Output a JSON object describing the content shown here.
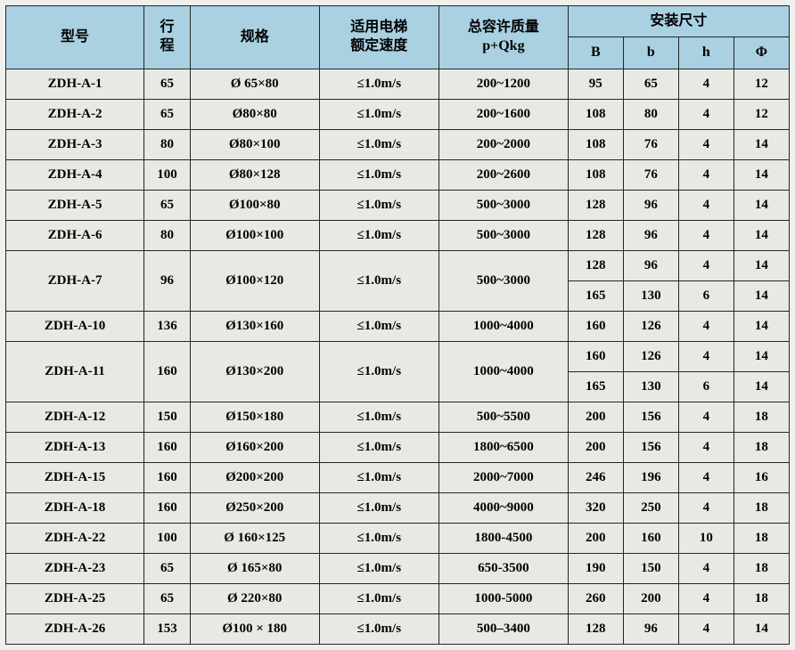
{
  "header": {
    "model": "型号",
    "stroke": "行程",
    "spec": "规格",
    "speed_line1": "适用电梯",
    "speed_line2": "额定速度",
    "mass_line1": "总容许质量",
    "mass_line2": "p+Qkg",
    "install": "安装尺寸",
    "B": "B",
    "b": "b",
    "h": "h",
    "phi": "Φ"
  },
  "colors": {
    "header_bg": "#a9d1e2",
    "body_bg": "#e8e8e4",
    "border": "#252525"
  },
  "rows": [
    {
      "model": "ZDH-A-1",
      "stroke": "65",
      "spec": "Ø 65×80",
      "speed": "≤1.0m/s",
      "mass": "200~1200",
      "dims": [
        {
          "B": "95",
          "b": "65",
          "h": "4",
          "phi": "12"
        }
      ]
    },
    {
      "model": "ZDH-A-2",
      "stroke": "65",
      "spec": "Ø80×80",
      "speed": "≤1.0m/s",
      "mass": "200~1600",
      "dims": [
        {
          "B": "108",
          "b": "80",
          "h": "4",
          "phi": "12"
        }
      ]
    },
    {
      "model": "ZDH-A-3",
      "stroke": "80",
      "spec": "Ø80×100",
      "speed": "≤1.0m/s",
      "mass": "200~2000",
      "dims": [
        {
          "B": "108",
          "b": "76",
          "h": "4",
          "phi": "14"
        }
      ]
    },
    {
      "model": "ZDH-A-4",
      "stroke": "100",
      "spec": "Ø80×128",
      "speed": "≤1.0m/s",
      "mass": "200~2600",
      "dims": [
        {
          "B": "108",
          "b": "76",
          "h": "4",
          "phi": "14"
        }
      ]
    },
    {
      "model": "ZDH-A-5",
      "stroke": "65",
      "spec": "Ø100×80",
      "speed": "≤1.0m/s",
      "mass": "500~3000",
      "dims": [
        {
          "B": "128",
          "b": "96",
          "h": "4",
          "phi": "14"
        }
      ]
    },
    {
      "model": "ZDH-A-6",
      "stroke": "80",
      "spec": "Ø100×100",
      "speed": "≤1.0m/s",
      "mass": "500~3000",
      "dims": [
        {
          "B": "128",
          "b": "96",
          "h": "4",
          "phi": "14"
        }
      ]
    },
    {
      "model": "ZDH-A-7",
      "stroke": "96",
      "spec": "Ø100×120",
      "speed": "≤1.0m/s",
      "mass": "500~3000",
      "dims": [
        {
          "B": "128",
          "b": "96",
          "h": "4",
          "phi": "14"
        },
        {
          "B": "165",
          "b": "130",
          "h": "6",
          "phi": "14"
        }
      ]
    },
    {
      "model": "ZDH-A-10",
      "stroke": "136",
      "spec": "Ø130×160",
      "speed": "≤1.0m/s",
      "mass": "1000~4000",
      "dims": [
        {
          "B": "160",
          "b": "126",
          "h": "4",
          "phi": "14"
        }
      ]
    },
    {
      "model": "ZDH-A-11",
      "stroke": "160",
      "spec": "Ø130×200",
      "speed": "≤1.0m/s",
      "mass": "1000~4000",
      "dims": [
        {
          "B": "160",
          "b": "126",
          "h": "4",
          "phi": "14"
        },
        {
          "B": "165",
          "b": "130",
          "h": "6",
          "phi": "14"
        }
      ]
    },
    {
      "model": "ZDH-A-12",
      "stroke": "150",
      "spec": "Ø150×180",
      "speed": "≤1.0m/s",
      "mass": "500~5500",
      "dims": [
        {
          "B": "200",
          "b": "156",
          "h": "4",
          "phi": "18"
        }
      ]
    },
    {
      "model": "ZDH-A-13",
      "stroke": "160",
      "spec": "Ø160×200",
      "speed": "≤1.0m/s",
      "mass": "1800~6500",
      "dims": [
        {
          "B": "200",
          "b": "156",
          "h": "4",
          "phi": "18"
        }
      ]
    },
    {
      "model": "ZDH-A-15",
      "stroke": "160",
      "spec": "Ø200×200",
      "speed": "≤1.0m/s",
      "mass": "2000~7000",
      "dims": [
        {
          "B": "246",
          "b": "196",
          "h": "4",
          "phi": "16"
        }
      ]
    },
    {
      "model": "ZDH-A-18",
      "stroke": "160",
      "spec": "Ø250×200",
      "speed": "≤1.0m/s",
      "mass": "4000~9000",
      "dims": [
        {
          "B": "320",
          "b": "250",
          "h": "4",
          "phi": "18"
        }
      ]
    },
    {
      "model": "ZDH-A-22",
      "stroke": "100",
      "spec": "Ø 160×125",
      "speed": "≤1.0m/s",
      "mass": "1800-4500",
      "dims": [
        {
          "B": "200",
          "b": "160",
          "h": "10",
          "phi": "18"
        }
      ]
    },
    {
      "model": "ZDH-A-23",
      "stroke": "65",
      "spec": "Ø 165×80",
      "speed": "≤1.0m/s",
      "mass": "650-3500",
      "dims": [
        {
          "B": "190",
          "b": "150",
          "h": "4",
          "phi": "18"
        }
      ]
    },
    {
      "model": "ZDH-A-25",
      "stroke": "65",
      "spec": "Ø 220×80",
      "speed": "≤1.0m/s",
      "mass": "1000-5000",
      "dims": [
        {
          "B": "260",
          "b": "200",
          "h": "4",
          "phi": "18"
        }
      ]
    },
    {
      "model": "ZDH-A-26",
      "stroke": "153",
      "spec": "Ø100 × 180",
      "speed": "≤1.0m/s",
      "mass": "500–3400",
      "dims": [
        {
          "B": "128",
          "b": "96",
          "h": "4",
          "phi": "14"
        }
      ]
    }
  ]
}
